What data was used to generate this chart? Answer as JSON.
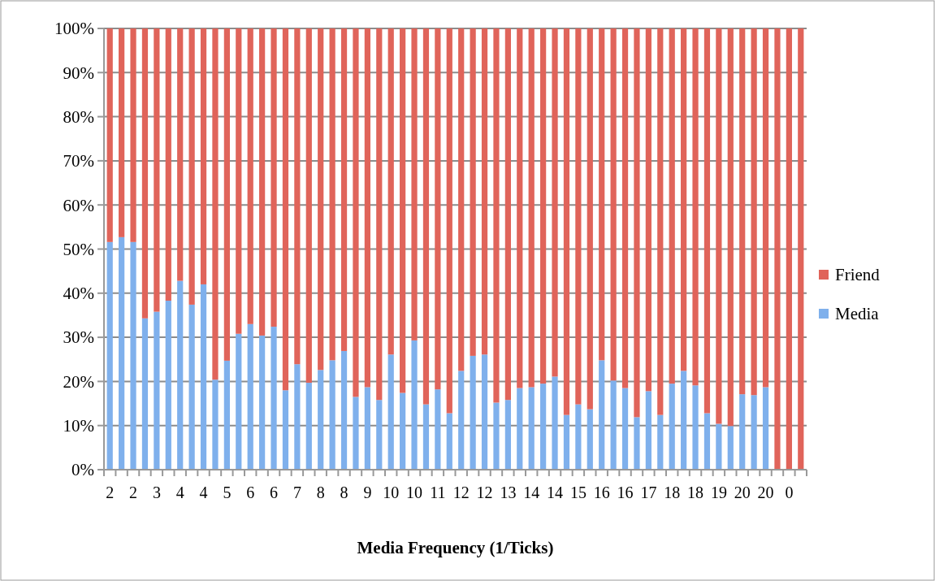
{
  "chart_data": {
    "type": "bar",
    "stacked": true,
    "xlabel": "Media Frequency (1/Ticks)",
    "categories": [
      "2",
      null,
      "2",
      null,
      "3",
      null,
      "4",
      null,
      "4",
      null,
      "5",
      null,
      "6",
      null,
      "6",
      null,
      "7",
      null,
      "8",
      null,
      "8",
      null,
      "9",
      null,
      "10",
      null,
      "10",
      null,
      "11",
      null,
      "12",
      null,
      "12",
      null,
      "13",
      null,
      "14",
      null,
      "14",
      null,
      "15",
      null,
      "16",
      null,
      "16",
      null,
      "17",
      null,
      "18",
      null,
      "18",
      null,
      "19",
      null,
      "20",
      null,
      "20",
      null,
      "0",
      null
    ],
    "series": [
      {
        "name": "Media",
        "color": "#7fb0ec",
        "values": [
          51.6,
          52.7,
          51.6,
          34.3,
          35.8,
          38.3,
          42.8,
          37.4,
          42.0,
          20.4,
          24.7,
          30.8,
          33.0,
          30.4,
          32.4,
          18.0,
          23.9,
          19.7,
          22.6,
          24.8,
          26.9,
          16.5,
          18.7,
          15.8,
          26.1,
          17.4,
          29.3,
          14.8,
          18.2,
          12.8,
          22.4,
          25.8,
          26.1,
          15.2,
          15.8,
          18.5,
          18.7,
          19.5,
          21.1,
          12.4,
          14.8,
          13.7,
          24.8,
          20.2,
          18.5,
          11.9,
          17.8,
          12.4,
          19.5,
          22.4,
          19.1,
          12.8,
          10.4,
          9.9,
          17.1,
          16.9,
          18.7,
          0,
          0,
          0
        ]
      },
      {
        "name": "Friend",
        "color": "#e0645a",
        "values": [
          48.4,
          47.3,
          48.4,
          65.7,
          64.2,
          61.7,
          57.2,
          62.6,
          58.0,
          79.6,
          75.3,
          69.2,
          67.0,
          69.6,
          67.6,
          82.0,
          76.1,
          80.3,
          77.4,
          75.2,
          73.1,
          83.5,
          81.3,
          84.2,
          73.9,
          82.6,
          70.7,
          85.2,
          81.8,
          87.2,
          77.6,
          74.2,
          73.9,
          84.8,
          84.2,
          81.5,
          81.3,
          80.5,
          78.9,
          87.6,
          85.2,
          86.3,
          75.2,
          79.8,
          81.5,
          88.1,
          82.2,
          87.6,
          80.5,
          77.6,
          80.9,
          87.2,
          89.6,
          90.1,
          82.9,
          83.1,
          81.3,
          100,
          100,
          100
        ]
      }
    ],
    "ylim": [
      0,
      100
    ],
    "yticks": [
      {
        "value": 0,
        "label": "0%"
      },
      {
        "value": 10,
        "label": "10%"
      },
      {
        "value": 20,
        "label": "20%"
      },
      {
        "value": 30,
        "label": "30%"
      },
      {
        "value": 40,
        "label": "40%"
      },
      {
        "value": 50,
        "label": "50%"
      },
      {
        "value": 60,
        "label": "60%"
      },
      {
        "value": 70,
        "label": "70%"
      },
      {
        "value": 80,
        "label": "80%"
      },
      {
        "value": 90,
        "label": "90%"
      },
      {
        "value": 100,
        "label": "100%"
      }
    ],
    "grid": "y",
    "legend": "right"
  }
}
